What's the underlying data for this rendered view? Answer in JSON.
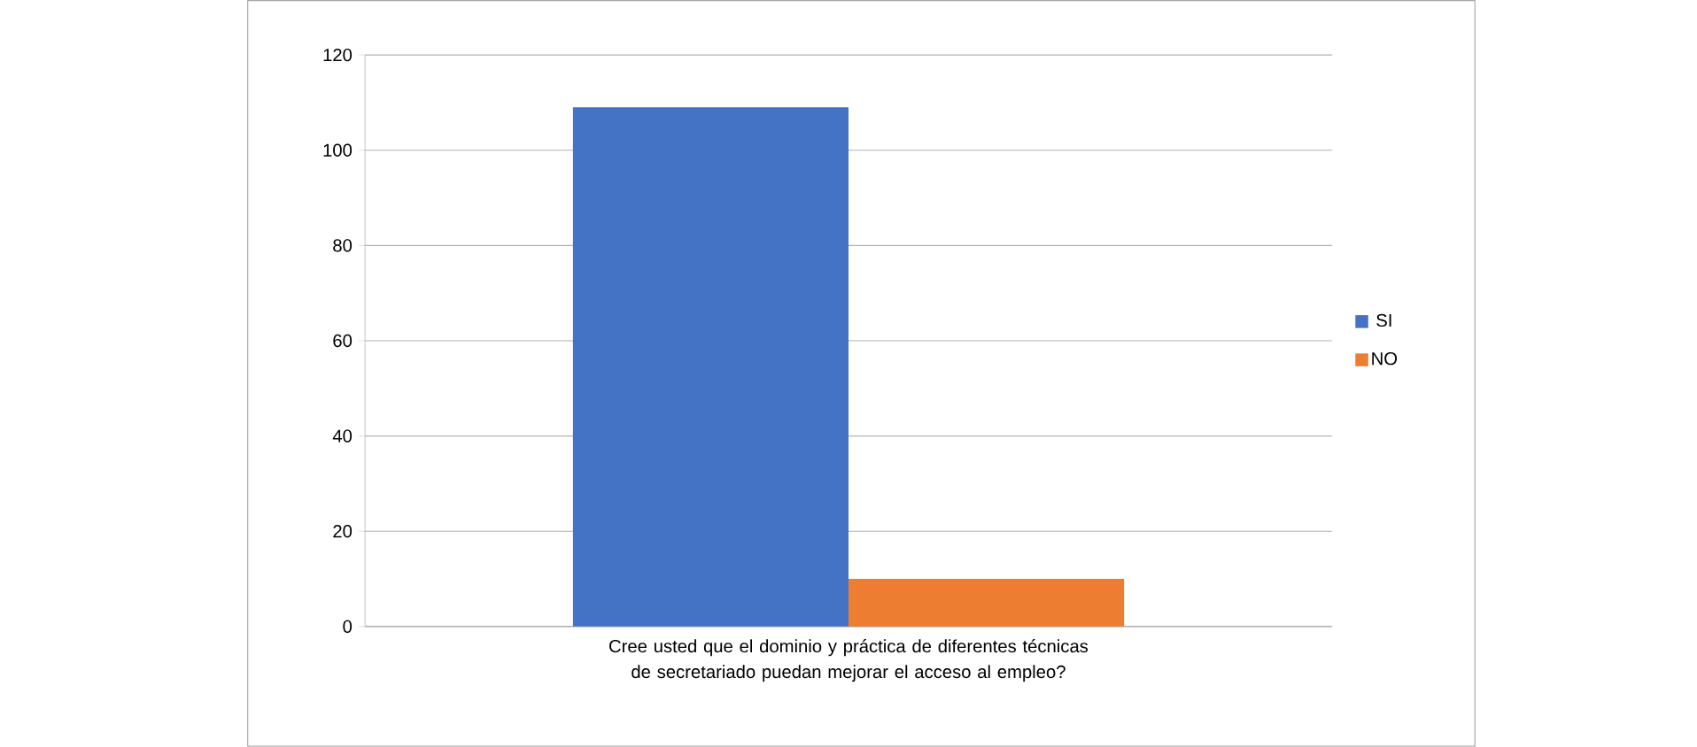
{
  "chart_data": {
    "type": "bar",
    "categories": [
      "Cree usted que el dominio y práctica de diferentes técnicas de secretariado puedan mejorar el acceso al empleo?"
    ],
    "series": [
      {
        "name": "SI",
        "color": "#4472c4",
        "values": [
          109
        ]
      },
      {
        "name": "NO",
        "color": "#ed7d31",
        "values": [
          10
        ]
      }
    ],
    "ylim": [
      0,
      120
    ],
    "yticks": [
      0,
      20,
      40,
      60,
      80,
      100,
      120
    ],
    "grid": "y",
    "legend": "right"
  }
}
